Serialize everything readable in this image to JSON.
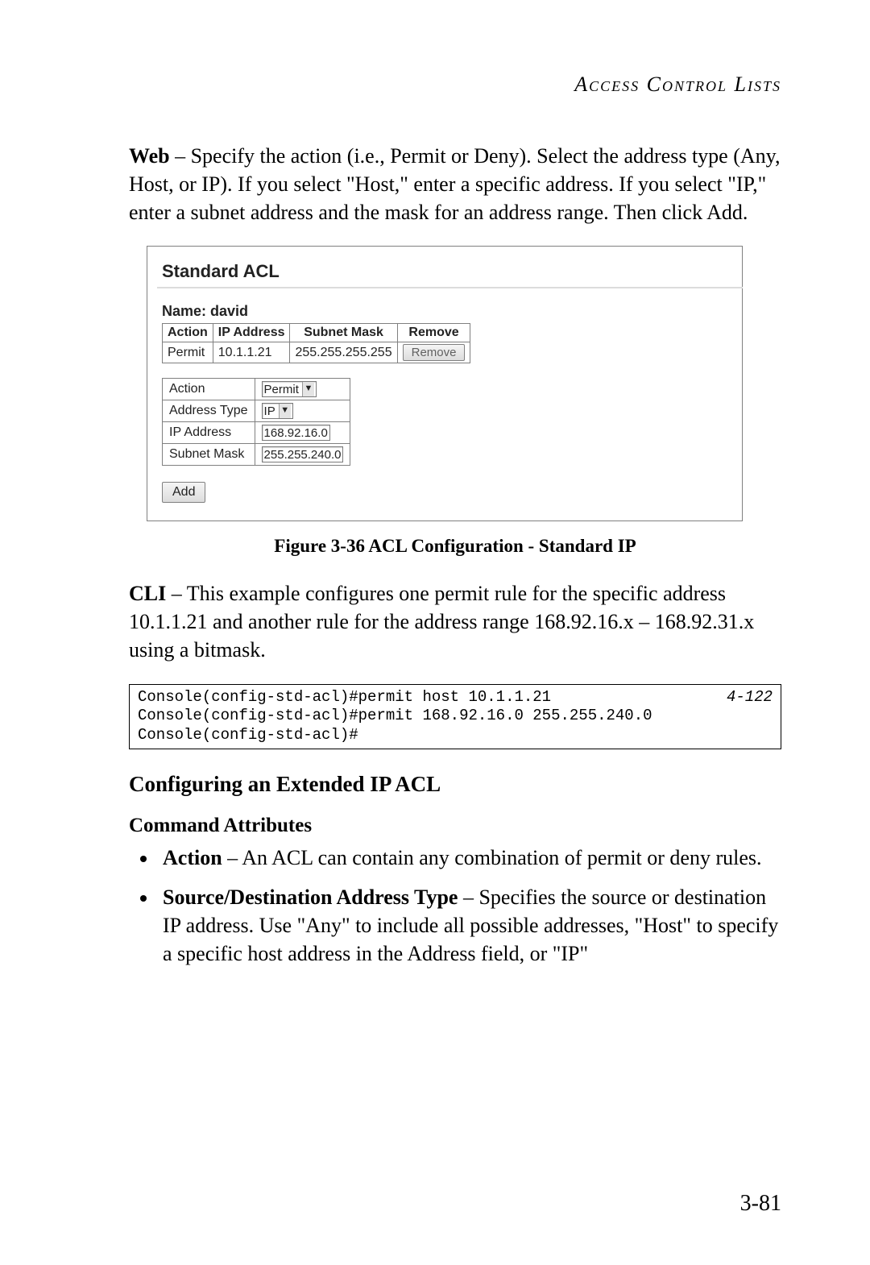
{
  "header": {
    "running": "Access Control Lists"
  },
  "web": {
    "lead_bold": "Web",
    "lead_rest": " – Specify the action (i.e., Permit or Deny). Select the address type (Any, Host, or IP). If you select \"Host,\" enter a specific address. If you select \"IP,\" enter a subnet address and the mask for an address range. Then click Add."
  },
  "screenshot": {
    "title": "Standard ACL",
    "name_label": "Name: ",
    "name_value": "david",
    "columns": [
      "Action",
      "IP Address",
      "Subnet Mask",
      "Remove"
    ],
    "row": {
      "action": "Permit",
      "ip": "10.1.1.21",
      "mask": "255.255.255.255",
      "remove": "Remove"
    },
    "form": {
      "action_label": "Action",
      "action_value": "Permit",
      "addrtype_label": "Address Type",
      "addrtype_value": "IP",
      "ip_label": "IP Address",
      "ip_value": "168.92.16.0",
      "mask_label": "Subnet Mask",
      "mask_value": "255.255.240.0"
    },
    "add_label": "Add"
  },
  "figure_caption": "Figure 3-36  ACL Configuration - Standard IP",
  "cli": {
    "lead_bold": "CLI",
    "lead_rest": " – This example configures one permit rule for the specific address 10.1.1.21 and another rule for the address range 168.92.16.x – 168.92.31.x using a bitmask.",
    "lines": "Console(config-std-acl)#permit host 10.1.1.21\nConsole(config-std-acl)#permit 168.92.16.0 255.255.240.0\nConsole(config-std-acl)#",
    "ref": "4-122"
  },
  "section_h2": "Configuring an Extended IP ACL",
  "section_h3": "Command Attributes",
  "attrs": {
    "a_bold": "Action",
    "a_rest": " – An ACL can contain any combination of permit or deny rules.",
    "b_bold": "Source/Destination Address Type",
    "b_rest": " – Specifies the source or destination IP address. Use \"Any\" to include all possible addresses, \"Host\" to specify a specific host address in the Address field, or \"IP\""
  },
  "page_number": "3-81"
}
